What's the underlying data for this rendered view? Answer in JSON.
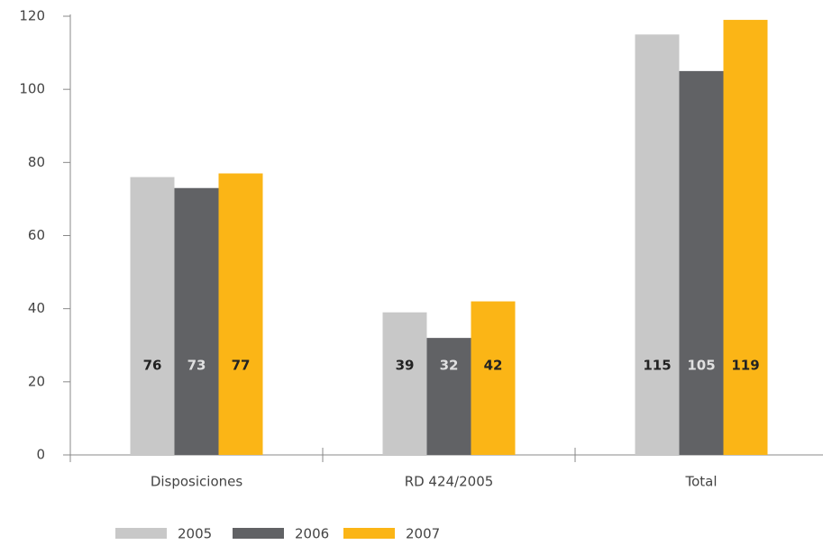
{
  "chart_data": {
    "type": "bar",
    "categories": [
      "Disposiciones",
      "RD 424/2005",
      "Total"
    ],
    "series": [
      {
        "name": "2005",
        "color": "#c8c8c8",
        "values": [
          76,
          39,
          115
        ]
      },
      {
        "name": "2006",
        "color": "#616265",
        "values": [
          73,
          32,
          105
        ]
      },
      {
        "name": "2007",
        "color": "#fbb516",
        "values": [
          77,
          42,
          119
        ]
      }
    ],
    "ylim": [
      0,
      120
    ],
    "yticks": [
      0,
      20,
      40,
      60,
      80,
      100,
      120
    ],
    "legend": "bottom-left"
  }
}
